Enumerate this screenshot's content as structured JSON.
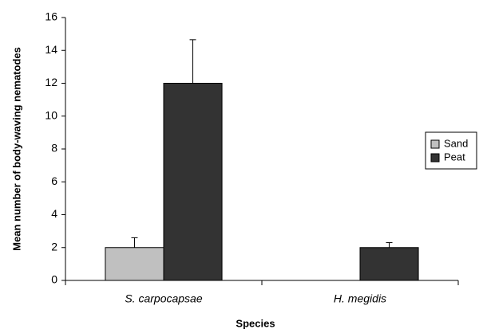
{
  "chart_data": {
    "type": "bar",
    "x_label": "Species",
    "y_label": "Mean number of body-waving nematodes",
    "categories": [
      "S. carpocapsae",
      "H. megidis"
    ],
    "series": [
      {
        "name": "Sand",
        "color": "#c0c0c0",
        "values": [
          2,
          0
        ],
        "errors": [
          0.6,
          null
        ]
      },
      {
        "name": "Peat",
        "color": "#333333",
        "values": [
          12,
          2
        ],
        "errors": [
          2.65,
          0.3
        ]
      }
    ],
    "ylim": [
      0,
      16
    ],
    "yticks": [
      0,
      2,
      4,
      6,
      8,
      10,
      12,
      14,
      16
    ],
    "grid": false,
    "legend": "right"
  }
}
